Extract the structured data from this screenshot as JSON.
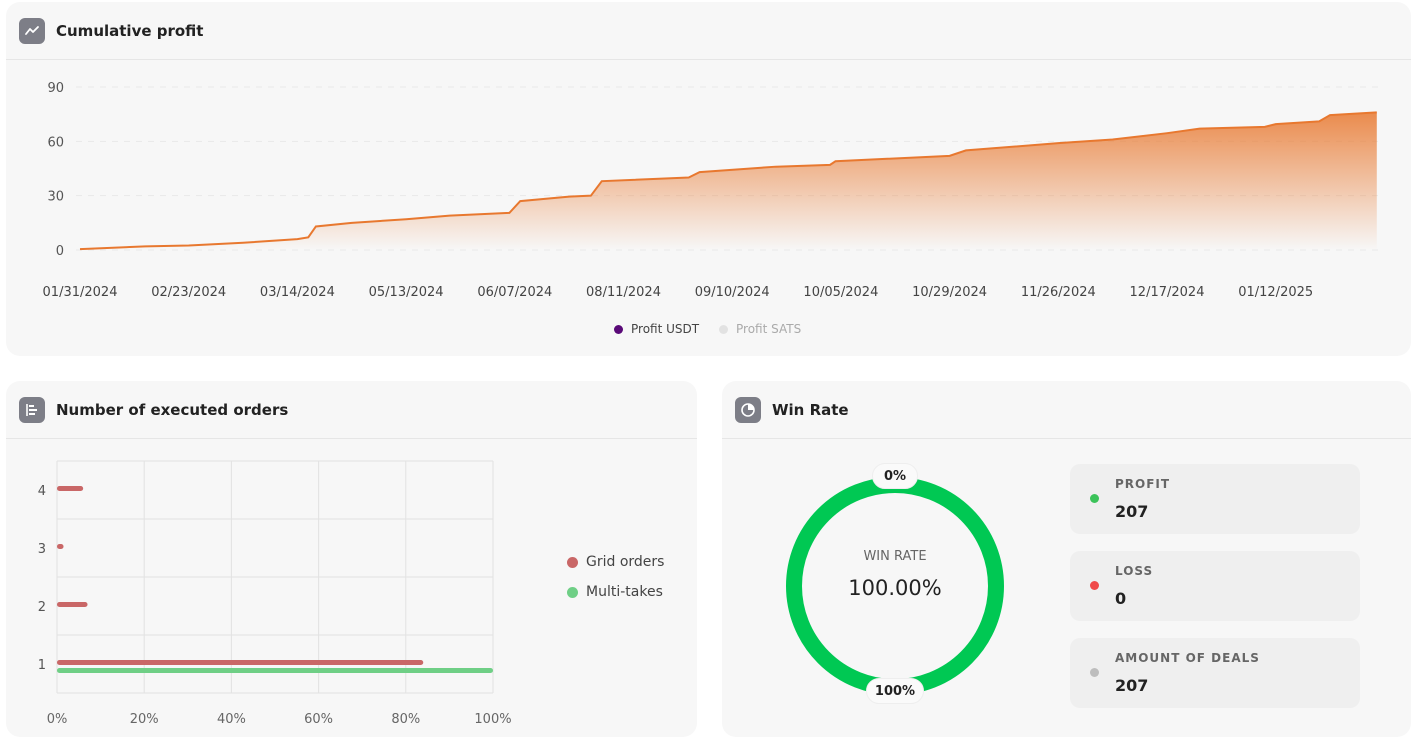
{
  "cumulative": {
    "title": "Cumulative profit",
    "icon": "trend-line-icon",
    "legend": [
      {
        "label": "Profit USDT",
        "color": "#5a0a78"
      },
      {
        "label": "Profit SATS",
        "color": "#dddddd"
      }
    ]
  },
  "orders": {
    "title": "Number of executed orders",
    "icon": "bar-list-icon"
  },
  "winrate": {
    "title": "Win Rate",
    "icon": "pie-chart-icon",
    "center_label": "WIN RATE",
    "center_value": "100.00%",
    "top_label": "0%",
    "bottom_label": "100%",
    "value_percent": 100,
    "color": "#00c853",
    "stats": [
      {
        "label": "PROFIT",
        "value": "207",
        "color": "#3cc35a"
      },
      {
        "label": "LOSS",
        "value": "0",
        "color": "#f04a4a"
      },
      {
        "label": "AMOUNT OF DEALS",
        "value": "207",
        "color": "#bdbdbd"
      }
    ]
  },
  "chart_data": [
    {
      "type": "area",
      "title": "Cumulative profit",
      "series_name": "Profit USDT",
      "color": "#e8782f",
      "ylim": [
        0,
        90
      ],
      "yticks": [
        "0",
        "30",
        "60",
        "90"
      ],
      "xticks": [
        "01/31/2024",
        "02/23/2024",
        "03/14/2024",
        "05/13/2024",
        "06/07/2024",
        "08/11/2024",
        "09/10/2024",
        "10/05/2024",
        "10/29/2024",
        "11/26/2024",
        "12/17/2024",
        "01/12/2025"
      ],
      "points": [
        [
          0,
          0.5
        ],
        [
          0.6,
          2
        ],
        [
          1,
          2.5
        ],
        [
          1.5,
          4
        ],
        [
          2,
          6
        ],
        [
          2.1,
          7
        ],
        [
          2.17,
          13
        ],
        [
          2.5,
          15
        ],
        [
          3,
          17
        ],
        [
          3.4,
          19
        ],
        [
          3.95,
          20.5
        ],
        [
          4.05,
          27
        ],
        [
          4.5,
          29.5
        ],
        [
          4.7,
          30
        ],
        [
          4.8,
          38
        ],
        [
          5.6,
          40
        ],
        [
          5.7,
          43
        ],
        [
          6.4,
          46
        ],
        [
          6.9,
          47
        ],
        [
          6.95,
          49
        ],
        [
          8,
          52
        ],
        [
          8.15,
          55
        ],
        [
          9,
          59
        ],
        [
          9.5,
          61
        ],
        [
          10,
          64.5
        ],
        [
          10.3,
          67
        ],
        [
          10.9,
          68
        ],
        [
          11,
          69.5
        ],
        [
          11.4,
          71
        ],
        [
          11.5,
          74.5
        ],
        [
          11.93,
          76
        ]
      ]
    },
    {
      "type": "bar",
      "orientation": "horizontal",
      "title": "Number of executed orders",
      "categories": [
        "1",
        "2",
        "3",
        "4"
      ],
      "xticks": [
        "0%",
        "20%",
        "40%",
        "60%",
        "80%",
        "100%"
      ],
      "xlim": [
        0,
        100
      ],
      "series": [
        {
          "name": "Grid orders",
          "color": "#c96767",
          "values": [
            84,
            7,
            1.5,
            6
          ]
        },
        {
          "name": "Multi-takes",
          "color": "#6fcf86",
          "values": [
            100,
            0,
            0,
            0
          ]
        }
      ]
    }
  ]
}
